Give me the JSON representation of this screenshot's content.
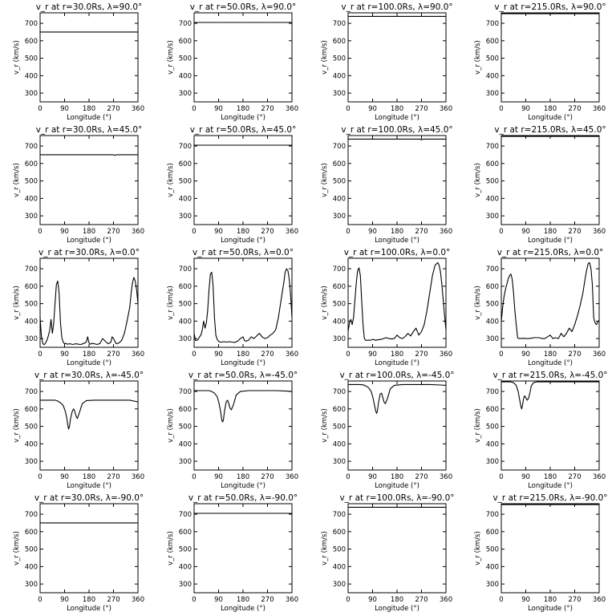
{
  "chart_data": [
    {
      "type": "line",
      "title": "v_r at r=30.0Rs, λ=90.0°",
      "ylabel": "v_r (km/s)",
      "xlabel": "Longitude (°)",
      "xlim": [
        0,
        360
      ],
      "ylim": [
        250,
        760
      ],
      "xticks": [
        "0",
        "90",
        "180",
        "270",
        "360"
      ],
      "yticks": [
        "300",
        "400",
        "500",
        "600",
        "700"
      ],
      "x": [
        0,
        360
      ],
      "y": [
        650,
        650
      ]
    },
    {
      "type": "line",
      "title": "v_r at r=50.0Rs, λ=90.0°",
      "ylabel": "v_r (km/s)",
      "xlabel": "Longitude (°)",
      "xlim": [
        0,
        360
      ],
      "ylim": [
        250,
        760
      ],
      "xticks": [
        "0",
        "90",
        "180",
        "270",
        "360"
      ],
      "yticks": [
        "300",
        "400",
        "500",
        "600",
        "700"
      ],
      "x": [
        0,
        360
      ],
      "y": [
        705,
        705
      ]
    },
    {
      "type": "line",
      "title": "v_r at r=100.0Rs, λ=90.0°",
      "ylabel": "v_r (km/s)",
      "xlabel": "Longitude (°)",
      "xlim": [
        0,
        360
      ],
      "ylim": [
        250,
        760
      ],
      "xticks": [
        "0",
        "90",
        "180",
        "270",
        "360"
      ],
      "yticks": [
        "300",
        "400",
        "500",
        "600",
        "700"
      ],
      "x": [
        0,
        360
      ],
      "y": [
        740,
        740
      ]
    },
    {
      "type": "line",
      "title": "v_r at r=215.0Rs, λ=90.0°",
      "ylabel": "v_r (km/s)",
      "xlabel": "Longitude (°)",
      "xlim": [
        0,
        360
      ],
      "ylim": [
        250,
        760
      ],
      "xticks": [
        "0",
        "90",
        "180",
        "270",
        "360"
      ],
      "yticks": [
        "300",
        "400",
        "500",
        "600",
        "700"
      ],
      "x": [
        0,
        360
      ],
      "y": [
        755,
        755
      ]
    },
    {
      "type": "line",
      "title": "v_r at r=30.0Rs, λ=45.0°",
      "ylabel": "v_r (km/s)",
      "xlabel": "Longitude (°)",
      "xlim": [
        0,
        360
      ],
      "ylim": [
        250,
        760
      ],
      "xticks": [
        "0",
        "90",
        "180",
        "270",
        "360"
      ],
      "yticks": [
        "300",
        "400",
        "500",
        "600",
        "700"
      ],
      "x": [
        0,
        270,
        275,
        280,
        360
      ],
      "y": [
        650,
        650,
        646,
        650,
        650
      ]
    },
    {
      "type": "line",
      "title": "v_r at r=50.0Rs, λ=45.0°",
      "ylabel": "v_r (km/s)",
      "xlabel": "Longitude (°)",
      "xlim": [
        0,
        360
      ],
      "ylim": [
        250,
        760
      ],
      "xticks": [
        "0",
        "90",
        "180",
        "270",
        "360"
      ],
      "yticks": [
        "300",
        "400",
        "500",
        "600",
        "700"
      ],
      "x": [
        0,
        360
      ],
      "y": [
        705,
        705
      ]
    },
    {
      "type": "line",
      "title": "v_r at r=100.0Rs, λ=45.0°",
      "ylabel": "v_r (km/s)",
      "xlabel": "Longitude (°)",
      "xlim": [
        0,
        360
      ],
      "ylim": [
        250,
        760
      ],
      "xticks": [
        "0",
        "90",
        "180",
        "270",
        "360"
      ],
      "yticks": [
        "300",
        "400",
        "500",
        "600",
        "700"
      ],
      "x": [
        0,
        265,
        270,
        275,
        360
      ],
      "y": [
        740,
        740,
        735,
        740,
        740
      ]
    },
    {
      "type": "line",
      "title": "v_r at r=215.0Rs, λ=45.0°",
      "ylabel": "v_r (km/s)",
      "xlabel": "Longitude (°)",
      "xlim": [
        0,
        360
      ],
      "ylim": [
        250,
        760
      ],
      "xticks": [
        "0",
        "90",
        "180",
        "270",
        "360"
      ],
      "yticks": [
        "300",
        "400",
        "500",
        "600",
        "700"
      ],
      "x": [
        0,
        360
      ],
      "y": [
        755,
        755
      ]
    },
    {
      "type": "line",
      "title": "v_r at r=30.0Rs, λ=0.0°",
      "ylabel": "v_r (km/s)",
      "xlabel": "Longitude (°)",
      "xlim": [
        0,
        360
      ],
      "ylim": [
        250,
        760
      ],
      "xticks": [
        "0",
        "90",
        "180",
        "270",
        "360"
      ],
      "yticks": [
        "300",
        "400",
        "500",
        "600",
        "700"
      ],
      "x": [
        0,
        5,
        10,
        15,
        20,
        25,
        30,
        35,
        40,
        45,
        50,
        55,
        60,
        65,
        70,
        75,
        80,
        85,
        90,
        95,
        100,
        110,
        120,
        130,
        140,
        150,
        160,
        170,
        175,
        180,
        185,
        190,
        200,
        210,
        220,
        230,
        240,
        250,
        260,
        265,
        270,
        275,
        280,
        290,
        300,
        310,
        320,
        330,
        335,
        340,
        345,
        350,
        355,
        360
      ],
      "y": [
        420,
        310,
        270,
        265,
        275,
        290,
        315,
        345,
        410,
        330,
        385,
        500,
        610,
        630,
        560,
        390,
        305,
        280,
        270,
        272,
        268,
        270,
        266,
        270,
        268,
        266,
        272,
        280,
        310,
        275,
        268,
        272,
        270,
        266,
        272,
        300,
        285,
        270,
        278,
        310,
        300,
        285,
        270,
        275,
        290,
        330,
        400,
        480,
        560,
        620,
        650,
        630,
        580,
        500
      ]
    },
    {
      "type": "line",
      "title": "v_r at r=50.0Rs, λ=0.0°",
      "ylabel": "v_r (km/s)",
      "xlabel": "Longitude (°)",
      "xlim": [
        0,
        360
      ],
      "ylim": [
        250,
        760
      ],
      "xticks": [
        "0",
        "90",
        "180",
        "270",
        "360"
      ],
      "yticks": [
        "300",
        "400",
        "500",
        "600",
        "700"
      ],
      "x": [
        0,
        5,
        10,
        15,
        20,
        25,
        30,
        35,
        40,
        45,
        50,
        55,
        60,
        65,
        70,
        75,
        80,
        85,
        90,
        95,
        100,
        110,
        120,
        130,
        140,
        150,
        160,
        170,
        180,
        185,
        190,
        200,
        210,
        220,
        230,
        240,
        250,
        260,
        270,
        280,
        290,
        300,
        310,
        320,
        330,
        335,
        340,
        345,
        350,
        355,
        360
      ],
      "y": [
        330,
        290,
        290,
        295,
        310,
        320,
        350,
        400,
        360,
        390,
        460,
        580,
        670,
        680,
        600,
        420,
        320,
        295,
        285,
        280,
        280,
        282,
        280,
        282,
        280,
        278,
        285,
        300,
        310,
        290,
        285,
        290,
        310,
        300,
        315,
        330,
        310,
        300,
        305,
        320,
        330,
        350,
        420,
        520,
        620,
        680,
        700,
        690,
        640,
        550,
        420
      ]
    },
    {
      "type": "line",
      "title": "v_r at r=100.0Rs, λ=0.0°",
      "ylabel": "v_r (km/s)",
      "xlabel": "Longitude (°)",
      "xlim": [
        0,
        360
      ],
      "ylim": [
        250,
        760
      ],
      "xticks": [
        "0",
        "90",
        "180",
        "270",
        "360"
      ],
      "yticks": [
        "300",
        "400",
        "500",
        "600",
        "700"
      ],
      "x": [
        0,
        5,
        10,
        15,
        20,
        25,
        30,
        35,
        40,
        45,
        50,
        55,
        60,
        65,
        70,
        75,
        80,
        85,
        90,
        95,
        100,
        110,
        120,
        130,
        140,
        150,
        160,
        170,
        180,
        190,
        200,
        210,
        220,
        230,
        240,
        250,
        260,
        270,
        280,
        290,
        300,
        310,
        320,
        330,
        335,
        340,
        345,
        350,
        355,
        360
      ],
      "y": [
        340,
        390,
        410,
        380,
        420,
        520,
        620,
        690,
        705,
        660,
        520,
        380,
        300,
        290,
        290,
        292,
        290,
        292,
        295,
        295,
        290,
        293,
        295,
        300,
        305,
        300,
        298,
        300,
        320,
        305,
        300,
        312,
        330,
        315,
        340,
        360,
        320,
        340,
        380,
        460,
        560,
        660,
        720,
        735,
        720,
        680,
        610,
        520,
        430,
        350
      ]
    },
    {
      "type": "line",
      "title": "v_r at r=215.0Rs, λ=0.0°",
      "ylabel": "v_r (km/s)",
      "xlabel": "Longitude (°)",
      "xlim": [
        0,
        360
      ],
      "ylim": [
        250,
        760
      ],
      "xticks": [
        "0",
        "90",
        "180",
        "270",
        "360"
      ],
      "yticks": [
        "300",
        "400",
        "500",
        "600",
        "700"
      ],
      "x": [
        0,
        5,
        10,
        15,
        20,
        25,
        30,
        35,
        40,
        45,
        50,
        55,
        60,
        65,
        70,
        80,
        90,
        100,
        110,
        120,
        130,
        140,
        150,
        160,
        170,
        180,
        190,
        200,
        210,
        220,
        230,
        240,
        250,
        260,
        270,
        280,
        290,
        300,
        305,
        310,
        315,
        320,
        325,
        330,
        335,
        340,
        345,
        350,
        355,
        360
      ],
      "y": [
        400,
        480,
        540,
        580,
        610,
        640,
        660,
        670,
        640,
        560,
        460,
        380,
        305,
        300,
        300,
        302,
        300,
        300,
        302,
        305,
        305,
        305,
        300,
        300,
        310,
        320,
        300,
        305,
        300,
        330,
        310,
        330,
        360,
        340,
        380,
        430,
        490,
        560,
        610,
        660,
        700,
        730,
        735,
        700,
        610,
        420,
        390,
        380,
        395,
        405
      ]
    },
    {
      "type": "line",
      "title": "v_r at r=30.0Rs, λ=-45.0°",
      "ylabel": "v_r (km/s)",
      "xlabel": "Longitude (°)",
      "xlim": [
        0,
        360
      ],
      "ylim": [
        250,
        760
      ],
      "xticks": [
        "0",
        "90",
        "180",
        "270",
        "360"
      ],
      "yticks": [
        "300",
        "400",
        "500",
        "600",
        "700"
      ],
      "x": [
        0,
        20,
        40,
        55,
        65,
        75,
        85,
        92,
        98,
        102,
        105,
        108,
        112,
        118,
        123,
        127,
        132,
        137,
        145,
        155,
        170,
        200,
        250,
        300,
        330,
        345,
        360
      ],
      "y": [
        650,
        650,
        650,
        650,
        645,
        635,
        620,
        590,
        550,
        505,
        485,
        500,
        545,
        585,
        600,
        590,
        560,
        545,
        580,
        630,
        648,
        650,
        650,
        650,
        650,
        645,
        640
      ]
    },
    {
      "type": "line",
      "title": "v_r at r=50.0Rs, λ=-45.0°",
      "ylabel": "v_r (km/s)",
      "xlabel": "Longitude (°)",
      "xlim": [
        0,
        360
      ],
      "ylim": [
        250,
        760
      ],
      "xticks": [
        "0",
        "90",
        "180",
        "270",
        "360"
      ],
      "yticks": [
        "300",
        "400",
        "500",
        "600",
        "700"
      ],
      "x": [
        0,
        20,
        40,
        55,
        65,
        75,
        85,
        92,
        98,
        102,
        105,
        108,
        112,
        118,
        123,
        127,
        132,
        137,
        145,
        155,
        170,
        200,
        250,
        300,
        340,
        360
      ],
      "y": [
        705,
        705,
        705,
        705,
        700,
        690,
        670,
        630,
        580,
        535,
        525,
        540,
        590,
        640,
        650,
        635,
        605,
        595,
        625,
        680,
        700,
        705,
        705,
        705,
        702,
        700
      ]
    },
    {
      "type": "line",
      "title": "v_r at r=100.0Rs, λ=-45.0°",
      "ylabel": "v_r (km/s)",
      "xlabel": "Longitude (°)",
      "xlim": [
        0,
        360
      ],
      "ylim": [
        250,
        760
      ],
      "xticks": [
        "0",
        "90",
        "180",
        "270",
        "360"
      ],
      "yticks": [
        "300",
        "400",
        "500",
        "600",
        "700"
      ],
      "x": [
        0,
        20,
        40,
        55,
        65,
        75,
        85,
        92,
        98,
        102,
        105,
        108,
        112,
        118,
        123,
        127,
        132,
        137,
        145,
        155,
        170,
        200,
        250,
        300,
        340,
        360
      ],
      "y": [
        740,
        740,
        740,
        738,
        732,
        722,
        700,
        660,
        615,
        585,
        575,
        590,
        640,
        685,
        690,
        670,
        640,
        630,
        660,
        715,
        735,
        740,
        740,
        740,
        737,
        735
      ]
    },
    {
      "type": "line",
      "title": "v_r at r=215.0Rs, λ=-45.0°",
      "ylabel": "v_r (km/s)",
      "xlabel": "Longitude (°)",
      "xlim": [
        0,
        360
      ],
      "ylim": [
        250,
        760
      ],
      "xticks": [
        "0",
        "90",
        "180",
        "270",
        "360"
      ],
      "yticks": [
        "300",
        "400",
        "500",
        "600",
        "700"
      ],
      "x": [
        0,
        20,
        35,
        45,
        55,
        62,
        68,
        72,
        75,
        78,
        82,
        86,
        90,
        95,
        100,
        105,
        110,
        118,
        130,
        150,
        200,
        250,
        300,
        360
      ],
      "y": [
        755,
        755,
        755,
        750,
        735,
        700,
        650,
        615,
        600,
        620,
        660,
        675,
        665,
        650,
        660,
        690,
        730,
        750,
        755,
        755,
        755,
        755,
        755,
        755
      ]
    },
    {
      "type": "line",
      "title": "v_r at r=30.0Rs, λ=-90.0°",
      "ylabel": "v_r (km/s)",
      "xlabel": "Longitude (°)",
      "xlim": [
        0,
        360
      ],
      "ylim": [
        250,
        760
      ],
      "xticks": [
        "0",
        "90",
        "180",
        "270",
        "360"
      ],
      "yticks": [
        "300",
        "400",
        "500",
        "600",
        "700"
      ],
      "x": [
        0,
        360
      ],
      "y": [
        650,
        650
      ]
    },
    {
      "type": "line",
      "title": "v_r at r=50.0Rs, λ=-90.0°",
      "ylabel": "v_r (km/s)",
      "xlabel": "Longitude (°)",
      "xlim": [
        0,
        360
      ],
      "ylim": [
        250,
        760
      ],
      "xticks": [
        "0",
        "90",
        "180",
        "270",
        "360"
      ],
      "yticks": [
        "300",
        "400",
        "500",
        "600",
        "700"
      ],
      "x": [
        0,
        360
      ],
      "y": [
        705,
        705
      ]
    },
    {
      "type": "line",
      "title": "v_r at r=100.0Rs, λ=-90.0°",
      "ylabel": "v_r (km/s)",
      "xlabel": "Longitude (°)",
      "xlim": [
        0,
        360
      ],
      "ylim": [
        250,
        760
      ],
      "xticks": [
        "0",
        "90",
        "180",
        "270",
        "360"
      ],
      "yticks": [
        "300",
        "400",
        "500",
        "600",
        "700"
      ],
      "x": [
        0,
        360
      ],
      "y": [
        740,
        740
      ]
    },
    {
      "type": "line",
      "title": "v_r at r=215.0Rs, λ=-90.0°",
      "ylabel": "v_r (km/s)",
      "xlabel": "Longitude (°)",
      "xlim": [
        0,
        360
      ],
      "ylim": [
        250,
        760
      ],
      "xticks": [
        "0",
        "90",
        "180",
        "270",
        "360"
      ],
      "yticks": [
        "300",
        "400",
        "500",
        "600",
        "700"
      ],
      "x": [
        0,
        360
      ],
      "y": [
        755,
        755
      ]
    }
  ]
}
